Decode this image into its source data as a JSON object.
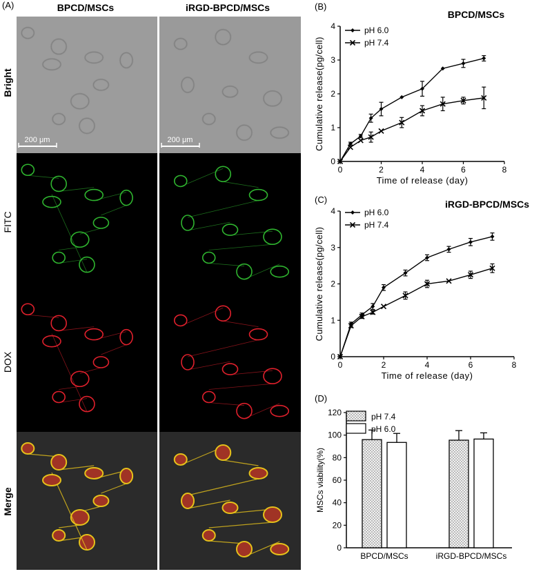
{
  "panel_letters": {
    "a": "(A)",
    "b": "(B)",
    "c": "(C)",
    "d": "(D)"
  },
  "micrographs": {
    "columns": [
      "BPCD/MSCs",
      "iRGD-BPCD/MSCs"
    ],
    "rows": [
      "Bright",
      "FITC",
      "DOX",
      "Merge"
    ],
    "scale_bar": "200 μm",
    "colors": {
      "fitc": "#2fb52f",
      "dox": "#e0202c",
      "merge_edge": "#e6c21a",
      "merge_core": "#a03325",
      "bright_bg": "#9c9c9c"
    }
  },
  "chart_data": [
    {
      "type": "line",
      "panel": "B",
      "title": "BPCD/MSCs",
      "xlabel": "Time of release (day)",
      "ylabel": "Cumulative release(pg/cell)",
      "xlim": [
        0,
        8
      ],
      "ylim": [
        0,
        4
      ],
      "xticks": [
        0,
        2,
        4,
        6,
        8
      ],
      "yticks": [
        0,
        1,
        2,
        3,
        4
      ],
      "legend": "top-left",
      "series": [
        {
          "name": "pH 6.0",
          "marker": "diamond",
          "x": [
            0,
            0.5,
            1,
            1.5,
            2,
            3,
            4,
            5,
            6,
            7
          ],
          "y": [
            0,
            0.52,
            0.75,
            1.28,
            1.55,
            1.9,
            2.15,
            2.75,
            2.9,
            3.05
          ],
          "err": [
            0,
            0.05,
            0.05,
            0.12,
            0.2,
            0,
            0.22,
            0,
            0.12,
            0.08
          ]
        },
        {
          "name": "pH 7.4",
          "marker": "x",
          "x": [
            0,
            0.5,
            1,
            1.5,
            2,
            3,
            4,
            5,
            6,
            7
          ],
          "y": [
            0,
            0.42,
            0.62,
            0.72,
            0.9,
            1.15,
            1.5,
            1.7,
            1.8,
            1.88
          ],
          "err": [
            0,
            0,
            0,
            0.15,
            0,
            0.15,
            0.15,
            0.2,
            0.1,
            0.32
          ]
        }
      ]
    },
    {
      "type": "line",
      "panel": "C",
      "title": "iRGD-BPCD/MSCs",
      "xlabel": "Time of release (day)",
      "ylabel": "Cumulative release(pg/cell)",
      "xlim": [
        0,
        8
      ],
      "ylim": [
        0,
        4
      ],
      "xticks": [
        0,
        2,
        4,
        6,
        8
      ],
      "yticks": [
        0,
        1,
        2,
        3,
        4
      ],
      "legend": "top-left",
      "series": [
        {
          "name": "pH 6.0",
          "marker": "diamond",
          "x": [
            0,
            0.5,
            1,
            1.5,
            2,
            3,
            4,
            5,
            6,
            7
          ],
          "y": [
            0,
            0.9,
            1.15,
            1.38,
            1.9,
            2.3,
            2.72,
            2.95,
            3.15,
            3.3
          ],
          "err": [
            0,
            0.05,
            0.05,
            0.08,
            0.08,
            0.08,
            0.08,
            0.08,
            0.1,
            0.1
          ]
        },
        {
          "name": "pH 7.4",
          "marker": "x",
          "x": [
            0,
            0.5,
            1,
            1.5,
            2,
            3,
            4,
            5,
            6,
            7
          ],
          "y": [
            0,
            0.85,
            1.1,
            1.22,
            1.38,
            1.68,
            2.0,
            2.08,
            2.25,
            2.43
          ],
          "err": [
            0,
            0.05,
            0.05,
            0.05,
            0,
            0.1,
            0.1,
            0,
            0.1,
            0.12
          ]
        }
      ]
    },
    {
      "type": "bar",
      "panel": "D",
      "categories": [
        "BPCD/MSCs",
        "iRGD-BPCD/MSCs"
      ],
      "ylabel": "MSCs viability(%)",
      "ylim": [
        0,
        120
      ],
      "yticks": [
        0,
        20,
        40,
        60,
        80,
        100,
        120
      ],
      "legend": "top-left",
      "series": [
        {
          "name": "pH 7.4",
          "pattern": "dotted",
          "values": [
            96,
            95.5
          ],
          "err": [
            8.5,
            8.5
          ]
        },
        {
          "name": "pH 6.0",
          "pattern": "white",
          "values": [
            93.5,
            96.5
          ],
          "err": [
            8,
            5.5
          ]
        }
      ]
    }
  ]
}
